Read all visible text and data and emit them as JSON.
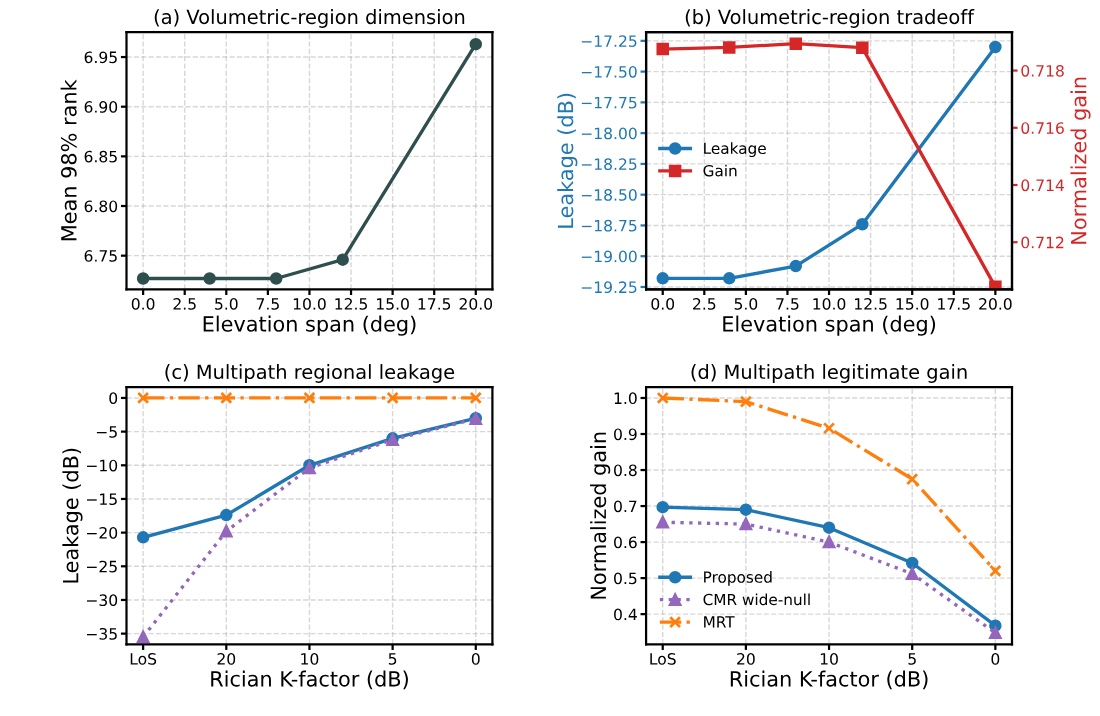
{
  "chart_data": [
    {
      "type": "line",
      "title": "(a) Volumetric-region dimension",
      "xlabel": "Elevation span (deg)",
      "ylabel": "Mean 98% rank",
      "x": [
        0,
        4,
        8,
        12,
        20
      ],
      "xlim": [
        -1,
        21
      ],
      "xticks": [
        {
          "value": 0,
          "label": "0.0"
        },
        {
          "value": 2.5,
          "label": "2.5"
        },
        {
          "value": 5,
          "label": "5.0"
        },
        {
          "value": 7.5,
          "label": "7.5"
        },
        {
          "value": 10,
          "label": "10.0"
        },
        {
          "value": 12.5,
          "label": "12.5"
        },
        {
          "value": 15,
          "label": "15.0"
        },
        {
          "value": 17.5,
          "label": "17.5"
        },
        {
          "value": 20,
          "label": "20.0"
        }
      ],
      "ylim": [
        6.716,
        6.975
      ],
      "yticks": [
        {
          "value": 6.75,
          "label": "6.75"
        },
        {
          "value": 6.8,
          "label": "6.80"
        },
        {
          "value": 6.85,
          "label": "6.85"
        },
        {
          "value": 6.9,
          "label": "6.90"
        },
        {
          "value": 6.95,
          "label": "6.95"
        }
      ],
      "grid": true,
      "marker": "circle",
      "series": [
        {
          "color": "#2f4f4f",
          "values": [
            6.727,
            6.727,
            6.727,
            6.746,
            6.963
          ]
        }
      ]
    },
    {
      "type": "line",
      "title": "(b) Volumetric-region tradeoff",
      "xlabel": "Elevation span (deg)",
      "ylabel": "Leakage (dB)",
      "y2label": "Normalized gain",
      "x": [
        0,
        4,
        8,
        12,
        20
      ],
      "xlim": [
        -1,
        21
      ],
      "xticks": [
        {
          "value": 0,
          "label": "0.0"
        },
        {
          "value": 2.5,
          "label": "2.5"
        },
        {
          "value": 5,
          "label": "5.0"
        },
        {
          "value": 7.5,
          "label": "7.5"
        },
        {
          "value": 10,
          "label": "10.0"
        },
        {
          "value": 12.5,
          "label": "12.5"
        },
        {
          "value": 15,
          "label": "15.0"
        },
        {
          "value": 17.5,
          "label": "17.5"
        },
        {
          "value": 20,
          "label": "20.0"
        }
      ],
      "ylim": [
        -19.27,
        -17.18
      ],
      "yticks": [
        {
          "value": -19.25,
          "label": "−19.25"
        },
        {
          "value": -19.0,
          "label": "−19.00"
        },
        {
          "value": -18.75,
          "label": "−18.75"
        },
        {
          "value": -18.5,
          "label": "−18.50"
        },
        {
          "value": -18.25,
          "label": "−18.25"
        },
        {
          "value": -18.0,
          "label": "−18.00"
        },
        {
          "value": -17.75,
          "label": "−17.75"
        },
        {
          "value": -17.5,
          "label": "−17.50"
        },
        {
          "value": -17.25,
          "label": "−17.25"
        }
      ],
      "y2lim": [
        0.71035,
        0.71934
      ],
      "y2ticks": [
        {
          "value": 0.712,
          "label": "0.712"
        },
        {
          "value": 0.714,
          "label": "0.714"
        },
        {
          "value": 0.716,
          "label": "0.716"
        },
        {
          "value": 0.718,
          "label": "0.718"
        }
      ],
      "grid": true,
      "legend": "center left",
      "series": [
        {
          "name": "Leakage",
          "color": "#1f77b4",
          "marker": "circle",
          "values": [
            -19.18,
            -19.18,
            -19.08,
            -18.74,
            -17.3
          ]
        },
        {
          "name": "Gain",
          "color": "#d62728",
          "marker": "square",
          "axis": "y2",
          "values": [
            0.71875,
            0.71881,
            0.71894,
            0.7188,
            0.71044
          ]
        }
      ]
    },
    {
      "type": "line",
      "title": "(c) Multipath regional leakage",
      "xlabel": "Rician K-factor (dB)",
      "ylabel": "Leakage (dB)",
      "categories": [
        "LoS",
        "20",
        "10",
        "5",
        "0"
      ],
      "ylim": [
        -36.6,
        1.6
      ],
      "yticks": [
        {
          "value": -35,
          "label": "−35"
        },
        {
          "value": -30,
          "label": "−30"
        },
        {
          "value": -25,
          "label": "−25"
        },
        {
          "value": -20,
          "label": "−20"
        },
        {
          "value": -15,
          "label": "−15"
        },
        {
          "value": -10,
          "label": "−10"
        },
        {
          "value": -5,
          "label": "−5"
        },
        0
      ],
      "grid": true,
      "series": [
        {
          "color": "#1f77b4",
          "marker": "circle",
          "line_style": "solid",
          "values": [
            -20.7,
            -17.4,
            -10,
            -6,
            -3
          ]
        },
        {
          "color": "#9467bd",
          "marker": "triangle",
          "line_style": "dotted",
          "values": [
            -35.5,
            -19.8,
            -10.4,
            -6.2,
            -3.1
          ]
        },
        {
          "color": "#ff7f0e",
          "marker": "cross",
          "line_style": "dashdot",
          "values": [
            0,
            0,
            0,
            0,
            0
          ]
        }
      ]
    },
    {
      "type": "line",
      "title": "(d) Multipath legitimate gain",
      "xlabel": "Rician K-factor (dB)",
      "ylabel": "Normalized gain",
      "categories": [
        "LoS",
        "20",
        "10",
        "5",
        "0"
      ],
      "ylim": [
        0.316,
        1.03
      ],
      "yticks": [
        0.4,
        0.5,
        0.6,
        0.7,
        0.8,
        0.9,
        {
          "value": 1.0,
          "label": "1.0"
        }
      ],
      "grid": true,
      "legend": "lower left",
      "series": [
        {
          "name": "Proposed",
          "color": "#1f77b4",
          "marker": "circle",
          "line_style": "solid",
          "values": [
            0.697,
            0.69,
            0.64,
            0.542,
            0.368
          ]
        },
        {
          "name": "CMR wide-null",
          "color": "#9467bd",
          "marker": "triangle",
          "line_style": "dotted",
          "values": [
            0.655,
            0.65,
            0.6,
            0.512,
            0.348
          ]
        },
        {
          "name": "MRT",
          "color": "#ff7f0e",
          "marker": "cross",
          "line_style": "dashdot",
          "values": [
            1.0,
            0.99,
            0.916,
            0.775,
            0.52
          ]
        }
      ]
    }
  ]
}
